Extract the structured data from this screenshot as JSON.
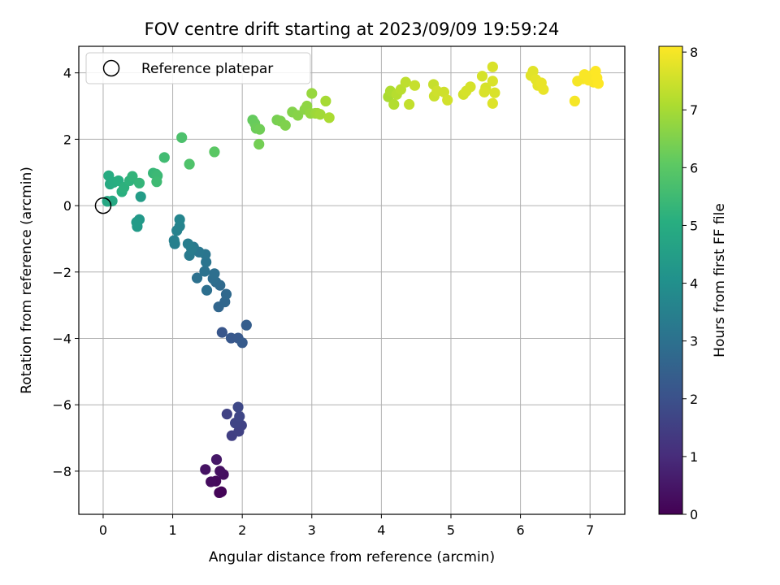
{
  "chart_data": {
    "type": "scatter",
    "title": "FOV centre drift starting at 2023/09/09 19:59:24",
    "xlabel": "Angular distance from reference (arcmin)",
    "ylabel": "Rotation from reference (arcmin)",
    "xlim": [
      -0.35,
      7.5
    ],
    "ylim": [
      -9.3,
      4.8
    ],
    "xticks": [
      0,
      1,
      2,
      3,
      4,
      5,
      6,
      7
    ],
    "yticks": [
      -8,
      -6,
      -4,
      -2,
      0,
      2,
      4
    ],
    "grid": true,
    "legend": {
      "placement": "top-left",
      "entries": [
        "Reference platepar"
      ]
    },
    "reference_point": {
      "x": 0,
      "y": 0
    },
    "colorbar": {
      "label": "Hours from first FF file",
      "range": [
        0,
        8.1
      ],
      "ticks": [
        0,
        1,
        2,
        3,
        4,
        5,
        6,
        7,
        8
      ],
      "colormap": "viridis"
    },
    "series": [
      {
        "points": [
          [
            1.7,
            -8.62
          ],
          [
            1.67,
            -8.65
          ],
          [
            1.62,
            -8.3
          ],
          [
            1.55,
            -8.32
          ],
          [
            1.73,
            -8.1
          ],
          [
            1.68,
            -8.0
          ],
          [
            1.47,
            -7.95
          ],
          [
            1.63,
            -7.65
          ],
          [
            1.85,
            -6.93
          ],
          [
            1.95,
            -6.8
          ],
          [
            1.99,
            -6.62
          ],
          [
            1.9,
            -6.55
          ],
          [
            1.96,
            -6.35
          ],
          [
            1.78,
            -6.28
          ],
          [
            1.94,
            -6.07
          ],
          [
            1.71,
            -3.82
          ],
          [
            1.84,
            -3.99
          ],
          [
            1.94,
            -3.99
          ],
          [
            2.0,
            -4.13
          ],
          [
            2.06,
            -3.6
          ],
          [
            1.66,
            -3.05
          ],
          [
            1.75,
            -2.9
          ],
          [
            1.77,
            -2.67
          ],
          [
            1.68,
            -2.4
          ],
          [
            1.62,
            -2.3
          ],
          [
            1.58,
            -2.2
          ],
          [
            1.6,
            -2.05
          ],
          [
            1.49,
            -2.55
          ],
          [
            1.35,
            -2.18
          ],
          [
            1.46,
            -1.98
          ],
          [
            1.48,
            -1.7
          ],
          [
            1.47,
            -1.47
          ],
          [
            1.38,
            -1.4
          ],
          [
            1.3,
            -1.25
          ],
          [
            1.24,
            -1.5
          ],
          [
            1.27,
            -1.3
          ],
          [
            1.22,
            -1.15
          ],
          [
            1.03,
            -1.15
          ],
          [
            1.02,
            -1.05
          ],
          [
            1.06,
            -0.75
          ],
          [
            1.1,
            -0.62
          ],
          [
            1.1,
            -0.42
          ],
          [
            0.52,
            -0.42
          ],
          [
            0.49,
            -0.63
          ],
          [
            0.48,
            -0.5
          ],
          [
            0.54,
            0.27
          ],
          [
            0.06,
            0.13
          ],
          [
            0.13,
            0.14
          ],
          [
            0.1,
            0.65
          ],
          [
            0.08,
            0.9
          ],
          [
            0.15,
            0.7
          ],
          [
            0.22,
            0.75
          ],
          [
            0.27,
            0.42
          ],
          [
            0.3,
            0.55
          ],
          [
            0.38,
            0.75
          ],
          [
            0.42,
            0.88
          ],
          [
            0.52,
            0.68
          ],
          [
            0.72,
            0.98
          ],
          [
            0.76,
            0.95
          ],
          [
            0.78,
            0.9
          ],
          [
            0.77,
            0.72
          ],
          [
            0.88,
            1.45
          ],
          [
            1.13,
            2.05
          ],
          [
            1.24,
            1.25
          ],
          [
            1.6,
            1.62
          ],
          [
            2.15,
            2.58
          ],
          [
            2.18,
            2.48
          ],
          [
            2.2,
            2.33
          ],
          [
            2.25,
            2.3
          ],
          [
            2.24,
            1.85
          ],
          [
            2.5,
            2.58
          ],
          [
            2.55,
            2.55
          ],
          [
            2.62,
            2.42
          ],
          [
            2.72,
            2.82
          ],
          [
            2.8,
            2.72
          ],
          [
            2.9,
            2.9
          ],
          [
            2.93,
            3.0
          ],
          [
            2.98,
            2.78
          ],
          [
            3.0,
            3.38
          ],
          [
            3.05,
            2.78
          ],
          [
            3.08,
            2.78
          ],
          [
            3.12,
            2.75
          ],
          [
            3.2,
            3.15
          ],
          [
            3.25,
            2.65
          ],
          [
            4.1,
            3.28
          ],
          [
            4.13,
            3.45
          ],
          [
            4.18,
            3.05
          ],
          [
            4.22,
            3.35
          ],
          [
            4.28,
            3.5
          ],
          [
            4.35,
            3.72
          ],
          [
            4.4,
            3.05
          ],
          [
            4.48,
            3.62
          ],
          [
            4.75,
            3.65
          ],
          [
            4.76,
            3.3
          ],
          [
            4.8,
            3.45
          ],
          [
            4.9,
            3.42
          ],
          [
            4.95,
            3.18
          ],
          [
            5.18,
            3.35
          ],
          [
            5.22,
            3.45
          ],
          [
            5.28,
            3.58
          ],
          [
            5.45,
            3.9
          ],
          [
            5.5,
            3.55
          ],
          [
            5.48,
            3.42
          ],
          [
            5.6,
            4.18
          ],
          [
            5.6,
            3.75
          ],
          [
            5.63,
            3.4
          ],
          [
            5.6,
            3.08
          ],
          [
            6.15,
            3.92
          ],
          [
            6.18,
            4.05
          ],
          [
            6.22,
            3.8
          ],
          [
            6.25,
            3.62
          ],
          [
            6.3,
            3.7
          ],
          [
            6.33,
            3.5
          ],
          [
            6.78,
            3.15
          ],
          [
            6.82,
            3.75
          ],
          [
            6.9,
            3.82
          ],
          [
            6.92,
            3.95
          ],
          [
            6.98,
            3.78
          ],
          [
            7.02,
            3.92
          ],
          [
            7.05,
            3.72
          ],
          [
            7.08,
            4.05
          ],
          [
            7.1,
            3.85
          ],
          [
            7.12,
            3.68
          ]
        ],
        "hours": [
          0.08,
          0.1,
          0.2,
          0.25,
          0.3,
          0.35,
          0.4,
          0.5,
          1.5,
          1.55,
          1.6,
          1.65,
          1.7,
          1.6,
          1.75,
          2.15,
          2.2,
          2.25,
          2.3,
          2.4,
          2.65,
          2.7,
          2.75,
          2.8,
          2.85,
          2.9,
          2.95,
          2.95,
          3.0,
          3.05,
          3.1,
          3.15,
          3.2,
          3.25,
          3.3,
          3.35,
          3.4,
          3.45,
          3.5,
          3.55,
          3.6,
          3.65,
          4.3,
          4.35,
          4.4,
          4.45,
          4.8,
          4.85,
          4.9,
          4.95,
          5.0,
          5.05,
          5.1,
          5.15,
          5.2,
          5.25,
          5.3,
          5.35,
          5.4,
          5.45,
          5.5,
          5.55,
          5.75,
          5.8,
          6.0,
          6.15,
          6.2,
          6.25,
          6.3,
          6.35,
          6.4,
          6.45,
          6.5,
          6.55,
          6.6,
          6.65,
          6.7,
          6.75,
          6.8,
          6.85,
          6.9,
          6.95,
          7.0,
          7.05,
          7.05,
          7.1,
          7.15,
          7.2,
          7.25,
          7.3,
          7.35,
          7.4,
          7.4,
          7.45,
          7.5,
          7.5,
          7.55,
          7.55,
          7.6,
          7.6,
          7.6,
          7.6,
          7.65,
          7.65,
          7.65,
          7.65,
          7.7,
          7.75,
          7.75,
          7.8,
          7.8,
          7.85,
          7.85,
          8.0,
          8.0,
          8.0,
          8.05,
          8.05,
          8.05,
          8.05,
          8.1,
          8.1,
          8.1
        ]
      }
    ]
  }
}
